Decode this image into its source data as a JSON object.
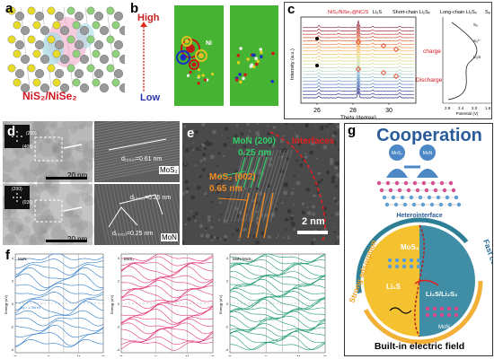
{
  "figure": {
    "panel_labels": {
      "a": "a",
      "b": "b",
      "c": "c",
      "d": "d",
      "e": "e",
      "f": "f",
      "g": "g"
    },
    "a": {
      "caption": "NiS₂/NiSe₂",
      "colors": {
        "S": "#e8dc2a",
        "Se": "#8fd07a",
        "Ni": "#9a9a9a",
        "cloud_pos": "#f0a8c8",
        "cloud_neg": "#a6dde6"
      }
    },
    "b": {
      "scale_high": "High",
      "scale_low": "Low",
      "atom_label": "Ni",
      "colors": {
        "bg": "#46b432",
        "high": "#e02020",
        "low": "#2038d0"
      }
    },
    "c": {
      "legend": {
        "sample": "NiS₂/NiSe₂@NC/S",
        "li2s": "Li₂S",
        "short_chain": "Short-chain Li₂Sₓ",
        "long_chain": "Long-chain Li₂Sₓ",
        "s8": "S₈"
      },
      "ylabel": "Intensity (a.u.)",
      "xlabel": "Theta (degree)",
      "xticks": [
        "26",
        "28",
        "30"
      ],
      "charge": "charge",
      "discharge": "Discharge",
      "side_xlabel": "Potential (V)",
      "side_xticks": [
        "2.8",
        "2.4",
        "2.0",
        "1.6"
      ],
      "side_labels": [
        "S₈",
        "S₆²⁻",
        "Li₂S"
      ],
      "trace_colors": [
        "#2a2a7a",
        "#333b8f",
        "#3d52a6",
        "#4a6cb8",
        "#5b86c4",
        "#6fa0cc",
        "#86b8cf",
        "#9ccac8",
        "#b1d6bd",
        "#c3ddad",
        "#d3df9b",
        "#e2dc88",
        "#ecd275",
        "#f2c364",
        "#f3af56",
        "#f0984b",
        "#ea7f43",
        "#df673e",
        "#cf523b",
        "#bb3f38",
        "#a3303a",
        "#8a2540"
      ]
    },
    "d": {
      "scale_top": "20 nm",
      "scale_bottom": "20 nm",
      "fft_top": [
        "(200)",
        "(400)"
      ],
      "fft_bottom": [
        "(200)",
        "(020)"
      ],
      "d1": "d₍₀₀₂₎=0.61 nm",
      "d2": "d₍₂₀₀₎=0.25 nm",
      "d3": "d₍₂₀₀₎=0.25 nm",
      "lbl_mos2": "MoS₂",
      "lbl_mon": "MoN"
    },
    "e": {
      "mon": "MoN (200)",
      "mon_d": "0.25 nm",
      "interface": "Interfaces",
      "mos2": "MoS₂ (002)",
      "mos2_d": "0.65 nm",
      "scale": "2 nm"
    },
    "f": {
      "titles": [
        "MoN",
        "MoS₂",
        "MoN-MoS₂"
      ],
      "ylabel": "Energy (eV)",
      "kticks": [
        "G",
        "K",
        "M",
        "G"
      ],
      "gap": "Eg = 1.756 eV",
      "colors": [
        "#2a78c6",
        "#e23478",
        "#1f9a6c"
      ],
      "yticks": [
        "4",
        "2",
        "0",
        "-2",
        "-4"
      ]
    },
    "g": {
      "title": "Cooperation",
      "mos2": "MoS₂",
      "mon": "MoN",
      "hetero": "Heterointerface",
      "mos2_inner": "MoS₂",
      "li2s": "Li₂S",
      "li2sli2s2": "Li₂S/Li₂S₂",
      "mon_inner": "MoN",
      "strong": "Strong adsorption",
      "fast": "Fast conversion",
      "built_in": "Built-in electric field",
      "colors": {
        "title": "#2a5c9a",
        "left": "#f4c230",
        "right": "#3f8ea6",
        "hex": "#d94a8c"
      }
    }
  }
}
